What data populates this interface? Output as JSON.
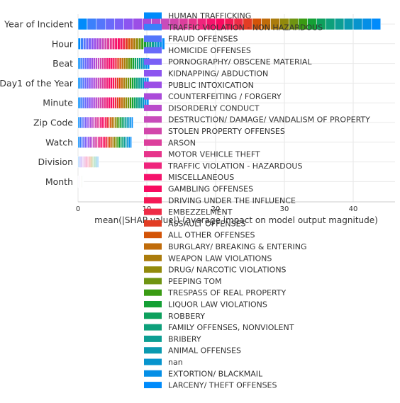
{
  "chart_data": {
    "type": "bar",
    "stacked": true,
    "orientation": "horizontal",
    "xlabel": "mean(|SHAP value|) (average impact on model output magnitude)",
    "xlim": [
      0,
      45
    ],
    "xticks": [
      0,
      10,
      20,
      30,
      40
    ],
    "grid": true,
    "legend_position": "overlapping center-right",
    "categories": [
      "Year of Incident",
      "Hour",
      "Beat",
      "Day1 of the Year",
      "Minute",
      "Zip Code",
      "Watch",
      "Division",
      "Month"
    ],
    "totals": [
      44.0,
      12.6,
      10.4,
      10.3,
      10.3,
      8.0,
      7.8,
      3.0,
      0.8
    ],
    "series": [
      {
        "name": "HUMAN TRAFFICKING",
        "color": "#008bfb"
      },
      {
        "name": "TRAFFIC VIOLATION - NON HAZARDOUS",
        "color": "#3c80fb"
      },
      {
        "name": "FRAUD OFFENSES",
        "color": "#5476fb"
      },
      {
        "name": "HOMICIDE OFFENSES",
        "color": "#696afa"
      },
      {
        "name": "PORNOGRAPHY/ OBSCENE MATERIAL",
        "color": "#7a60f6"
      },
      {
        "name": "KIDNAPPING/ ABDUCTION",
        "color": "#8c55f0"
      },
      {
        "name": "PUBLIC INTOXICATION",
        "color": "#9b4ee6"
      },
      {
        "name": "COUNTERFEITING / FORGERY",
        "color": "#aa4ad9"
      },
      {
        "name": "DISORDERLY CONDUCT",
        "color": "#b94bcb"
      },
      {
        "name": "DESTRUCTION/ DAMAGE/ VANDALISM OF PROPERTY",
        "color": "#c84cbb"
      },
      {
        "name": "STOLEN PROPERTY OFFENSES",
        "color": "#d247ab"
      },
      {
        "name": "ARSON",
        "color": "#dc3f9c"
      },
      {
        "name": "MOTOR VEHICLE THEFT",
        "color": "#e7348b"
      },
      {
        "name": "TRAFFIC VIOLATION - HAZARDOUS",
        "color": "#ef247c"
      },
      {
        "name": "MISCELLANEOUS",
        "color": "#f5136c"
      },
      {
        "name": "GAMBLING OFFENSES",
        "color": "#f80a60"
      },
      {
        "name": "DRIVING UNDER THE INFLUENCE",
        "color": "#f41a56"
      },
      {
        "name": "EMBEZZELMENT",
        "color": "#ee2b46"
      },
      {
        "name": "ASSAULT OFFENSES",
        "color": "#e23d24"
      },
      {
        "name": "ALL OTHER OFFENSES",
        "color": "#d35407"
      },
      {
        "name": "BURGLARY/ BREAKING & ENTERING",
        "color": "#c06c0a"
      },
      {
        "name": "WEAPON LAW VIOLATIONS",
        "color": "#ab7c0c"
      },
      {
        "name": "DRUG/ NARCOTIC VIOLATIONS",
        "color": "#928a0c"
      },
      {
        "name": "PEEPING TOM",
        "color": "#6f9412"
      },
      {
        "name": "TRESPASS OF REAL PROPERTY",
        "color": "#3a9b13"
      },
      {
        "name": "LIQUOR LAW VIOLATIONS",
        "color": "#14a035"
      },
      {
        "name": "ROBBERY",
        "color": "#0da05d"
      },
      {
        "name": "FAMILY OFFENSES, NONVIOLENT",
        "color": "#0da07b"
      },
      {
        "name": "BRIBERY",
        "color": "#0d9e93"
      },
      {
        "name": "ANIMAL OFFENSES",
        "color": "#0a9ab0"
      },
      {
        "name": "nan",
        "color": "#0794cd"
      },
      {
        "name": "EXTORTION/ BLACKMAIL",
        "color": "#058fe6"
      },
      {
        "name": "LARCENY/ THEFT OFFENSES",
        "color": "#008bfb"
      }
    ]
  }
}
